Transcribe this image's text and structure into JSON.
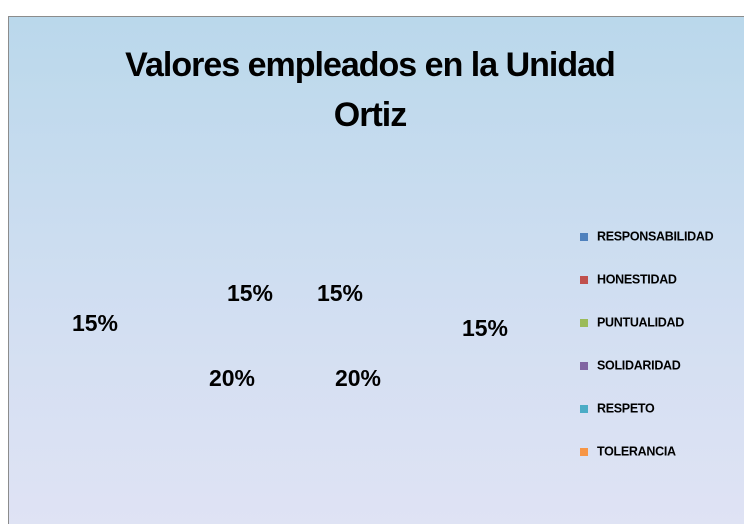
{
  "chart_data": {
    "type": "pie",
    "title": "Valores empleados en la Unidad Ortiz",
    "categories": [
      "RESPONSABILIDAD",
      "HONESTIDAD",
      "PUNTUALIDAD",
      "SOLIDARIDAD",
      "RESPETO",
      "TOLERANCIA"
    ],
    "values": [
      15,
      15,
      20,
      20,
      15,
      15
    ],
    "value_labels": [
      "15%",
      "15%",
      "20%",
      "20%",
      "15%",
      "15%"
    ],
    "colors": [
      "#4f81bd",
      "#c0504d",
      "#9bbb59",
      "#8064a2",
      "#4bacc6",
      "#f79646"
    ],
    "legend": "right"
  }
}
